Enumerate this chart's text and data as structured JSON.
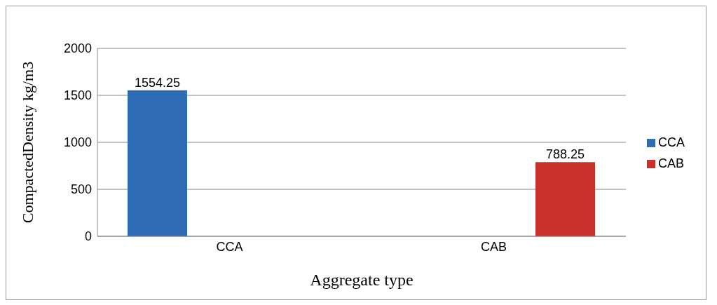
{
  "chart_data": {
    "type": "bar",
    "xlabel": "Aggregate type",
    "ylabel": "CompactedDensity kg/m3",
    "categories": [
      "CCA",
      "CAB"
    ],
    "series": [
      {
        "name": "CCA",
        "color": "#2e6db4",
        "values": [
          1554.25,
          null
        ]
      },
      {
        "name": "CAB",
        "color": "#c8312c",
        "values": [
          null,
          788.25
        ]
      }
    ],
    "ylim": [
      0,
      2000
    ],
    "yticks": [
      0,
      500,
      1000,
      1500,
      2000
    ],
    "grid": "y",
    "legend": "right",
    "data_labels": true
  }
}
